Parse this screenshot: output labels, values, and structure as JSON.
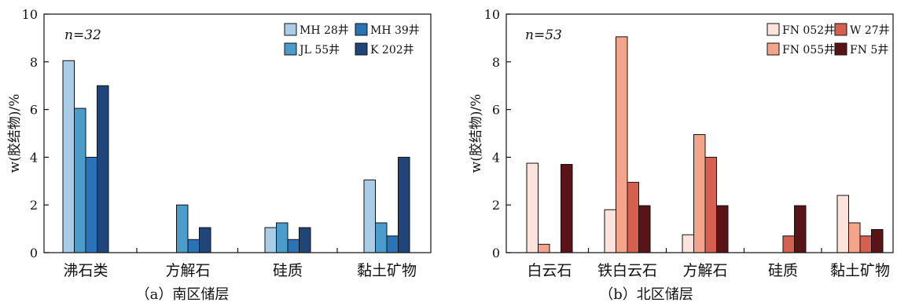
{
  "chart_data": [
    {
      "type": "bar",
      "caption": "（a）南区储层",
      "ylabel": "w(胶结物)/%",
      "annotation": "n=32",
      "ylim": [
        0,
        10
      ],
      "yticks": [
        0,
        2,
        4,
        6,
        8,
        10
      ],
      "legend_position": "top-right",
      "categories": [
        "沸石类",
        "方解石",
        "硅质",
        "黏土矿物"
      ],
      "series": [
        {
          "name": "MH 28井",
          "color": "#a9cde6",
          "values": [
            8.05,
            null,
            1.05,
            3.05
          ]
        },
        {
          "name": "JL 55井",
          "color": "#4c9ccb",
          "values": [
            6.05,
            2.0,
            1.25,
            1.25
          ]
        },
        {
          "name": "MH 39井",
          "color": "#2a73b6",
          "values": [
            4.0,
            0.55,
            0.55,
            0.7
          ]
        },
        {
          "name": "K 202井",
          "color": "#1f4579",
          "values": [
            7.0,
            1.05,
            1.05,
            4.0
          ]
        }
      ]
    },
    {
      "type": "bar",
      "caption": "（b）北区储层",
      "ylabel": "w(胶结物)/%",
      "annotation": "n=53",
      "ylim": [
        0,
        10
      ],
      "yticks": [
        0,
        2,
        4,
        6,
        8,
        10
      ],
      "legend_position": "top-right",
      "categories": [
        "白云石",
        "铁白云石",
        "方解石",
        "硅质",
        "黏土矿物"
      ],
      "series": [
        {
          "name": "FN 052井",
          "color": "#fde3dc",
          "values": [
            3.75,
            1.8,
            0.75,
            null,
            2.4
          ]
        },
        {
          "name": "FN 055井",
          "color": "#f4a48a",
          "values": [
            0.35,
            9.05,
            4.95,
            null,
            1.25
          ]
        },
        {
          "name": "W 27井",
          "color": "#d6604f",
          "values": [
            null,
            2.95,
            4.0,
            0.7,
            0.7
          ]
        },
        {
          "name": "FN 5井",
          "color": "#5a1418",
          "values": [
            3.7,
            1.97,
            1.97,
            1.97,
            0.97
          ]
        }
      ]
    }
  ]
}
